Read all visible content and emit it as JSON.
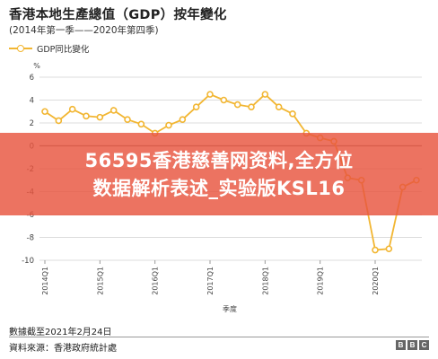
{
  "chart_data": {
    "type": "line",
    "title": "香港本地生產總值（GDP）按年變化",
    "subtitle": "(2014年第一季——2020年第四季)",
    "xlabel": "季度",
    "ylabel": "%",
    "ylim": [
      -10,
      6
    ],
    "yticks": [
      "6",
      "4",
      "2",
      "0",
      "-2",
      "-4",
      "-6",
      "-8",
      "-10"
    ],
    "grid": true,
    "legend_position": "top-left",
    "x": [
      "2014Q1",
      "2014Q2",
      "2014Q3",
      "2014Q4",
      "2015Q1",
      "2015Q2",
      "2015Q3",
      "2015Q4",
      "2016Q1",
      "2016Q2",
      "2016Q3",
      "2016Q4",
      "2017Q1",
      "2017Q2",
      "2017Q3",
      "2017Q4",
      "2018Q1",
      "2018Q2",
      "2018Q3",
      "2018Q4",
      "2019Q1",
      "2019Q2",
      "2019Q3",
      "2019Q4",
      "2020Q1",
      "2020Q2",
      "2020Q3",
      "2020Q4"
    ],
    "xtick_labels": [
      "2014Q1",
      "2015Q1",
      "2016Q1",
      "2017Q1",
      "2018Q1",
      "2019Q1",
      "2020Q1"
    ],
    "series": [
      {
        "name": "GDP同比變化",
        "color": "#f2b632",
        "values": [
          3.0,
          2.2,
          3.2,
          2.6,
          2.5,
          3.1,
          2.3,
          1.9,
          1.1,
          1.8,
          2.3,
          3.4,
          4.5,
          4.0,
          3.6,
          3.4,
          4.5,
          3.4,
          2.8,
          1.1,
          0.7,
          0.4,
          -2.8,
          -3.0,
          -9.1,
          -9.0,
          -3.6,
          -3.0
        ]
      }
    ]
  },
  "footer": {
    "note": "數據截至2021年2月24日",
    "source": "資料來源：香港政府統計處",
    "logo_letters": [
      "B",
      "B",
      "C"
    ]
  },
  "overlay": {
    "line1": "56595香港慈善网资料,全方位",
    "line2": "数据解析表述_实验版KSL16"
  }
}
